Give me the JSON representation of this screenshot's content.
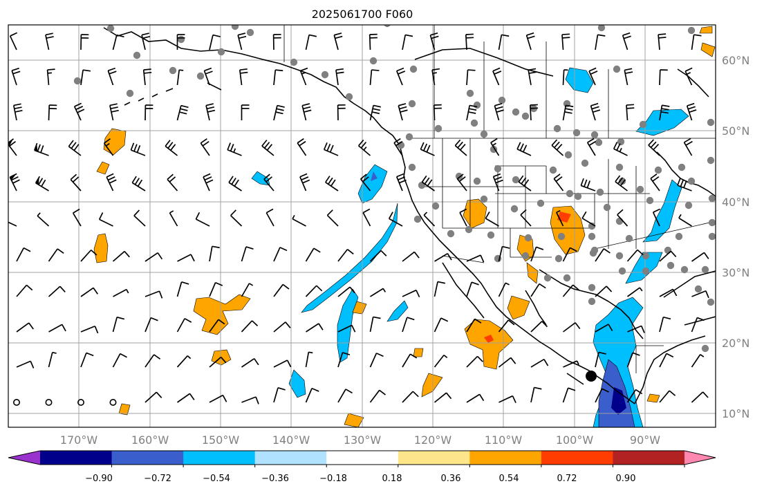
{
  "title": "2025061700 F060",
  "latitude_labels": [
    "60°N",
    "50°N",
    "40°N",
    "30°N",
    "20°N",
    "10°N"
  ],
  "longitude_labels": [
    "170°W",
    "160°W",
    "150°W",
    "140°W",
    "130°W",
    "120°W",
    "110°W",
    "100°W",
    "90°W"
  ],
  "colorbar": {
    "colors": [
      "#9a32cd",
      "#00008b",
      "#3a5fcd",
      "#00bfff",
      "#b0e2ff",
      "#ffffff",
      "#fde68a",
      "#ffa500",
      "#ff3d00",
      "#b22222",
      "#ff88b0"
    ],
    "tick_labels": [
      "−0.90",
      "−0.72",
      "−0.54",
      "−0.36",
      "−0.18",
      "0.18",
      "0.36",
      "0.54",
      "0.72",
      "0.90"
    ]
  },
  "legend_colors": {
    "station_marker": "#808080",
    "wind_barb": "#000000",
    "coastline": "#000000"
  }
}
